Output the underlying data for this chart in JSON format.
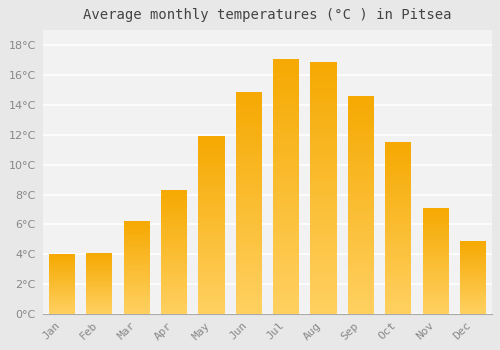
{
  "title": "Average monthly temperatures (°C ) in Pitsea",
  "months": [
    "Jan",
    "Feb",
    "Mar",
    "Apr",
    "May",
    "Jun",
    "Jul",
    "Aug",
    "Sep",
    "Oct",
    "Nov",
    "Dec"
  ],
  "temperatures": [
    4.0,
    4.1,
    6.2,
    8.3,
    11.9,
    14.9,
    17.1,
    16.9,
    14.6,
    11.5,
    7.1,
    4.9
  ],
  "bar_color_top": "#F5A800",
  "bar_color_bottom": "#FFD060",
  "background_color": "#E8E8E8",
  "plot_bg_color": "#F2F2F2",
  "grid_color": "#FFFFFF",
  "tick_label_color": "#888888",
  "title_color": "#444444",
  "spine_color": "#AAAAAA",
  "ylim": [
    0,
    19
  ],
  "yticks": [
    0,
    2,
    4,
    6,
    8,
    10,
    12,
    14,
    16,
    18
  ],
  "title_fontsize": 10,
  "tick_fontsize": 8,
  "bar_width": 0.7
}
